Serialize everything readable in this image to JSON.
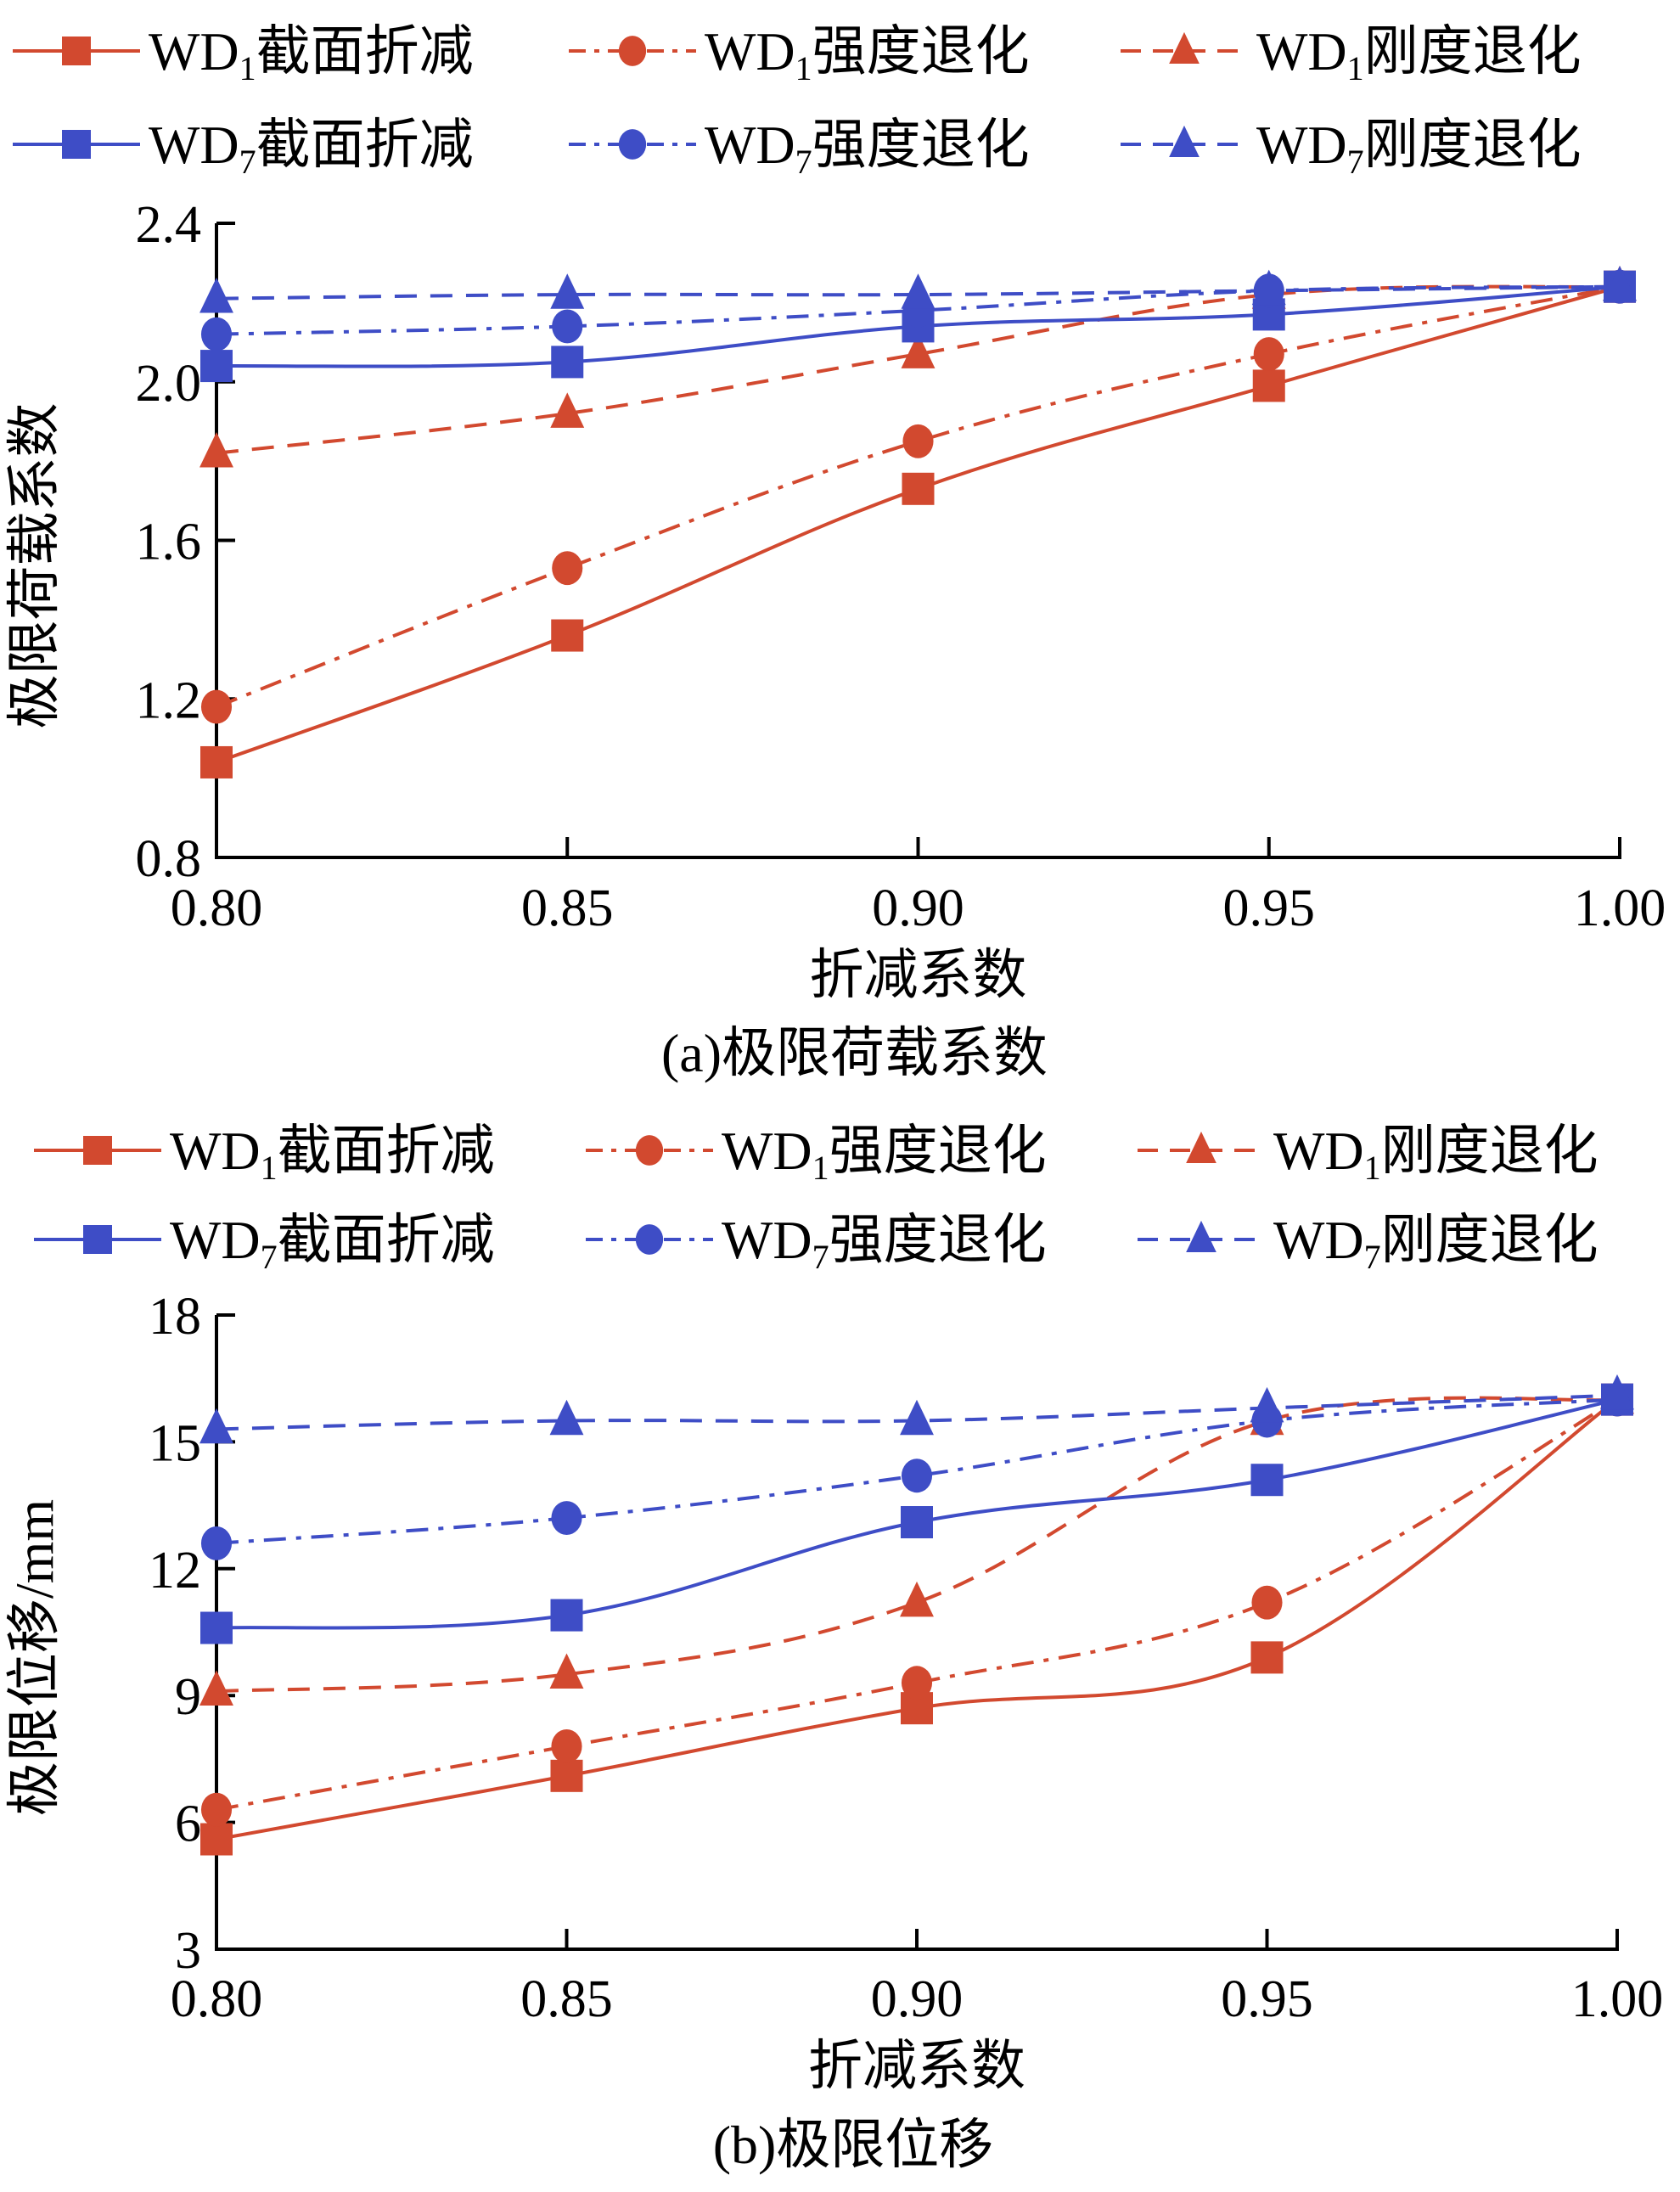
{
  "colors": {
    "red": "#D2492F",
    "blue": "#3E4DC6",
    "axis": "#000000"
  },
  "chart_data": [
    {
      "type": "line",
      "title": "(a)极限荷载系数",
      "xlabel": "折减系数",
      "ylabel": "极限荷载系数",
      "x": [
        0.8,
        0.85,
        0.9,
        0.95,
        1.0
      ],
      "xticks": [
        "0.80",
        "0.85",
        "0.90",
        "0.95",
        "1.00"
      ],
      "yticks": [
        "0.8",
        "1.2",
        "1.6",
        "2.0",
        "2.4"
      ],
      "ylim": [
        0.8,
        2.4
      ],
      "xlim": [
        0.8,
        1.0
      ],
      "grid": false,
      "legend_placement": "top",
      "series": [
        {
          "name": "WD1截面折减",
          "label_main": "WD",
          "label_sub": "1",
          "label_rest": "截面折减",
          "color": "red",
          "dash": "solid",
          "marker": "square",
          "values": [
            1.04,
            1.36,
            1.73,
            1.99,
            2.24
          ]
        },
        {
          "name": "WD1强度退化",
          "label_main": "WD",
          "label_sub": "1",
          "label_rest": "强度退化",
          "color": "red",
          "dash": "dashdot",
          "marker": "circle",
          "values": [
            1.18,
            1.53,
            1.85,
            2.07,
            2.24
          ]
        },
        {
          "name": "WD1刚度退化",
          "label_main": "WD",
          "label_sub": "1",
          "label_rest": "刚度退化",
          "color": "red",
          "dash": "dashed",
          "marker": "triangle",
          "values": [
            1.82,
            1.92,
            2.07,
            2.22,
            2.24
          ]
        },
        {
          "name": "WD7截面折减",
          "label_main": "WD",
          "label_sub": "7",
          "label_rest": "截面折减",
          "color": "blue",
          "dash": "solid",
          "marker": "square",
          "values": [
            2.04,
            2.05,
            2.14,
            2.17,
            2.24
          ]
        },
        {
          "name": "WD7强度退化",
          "label_main": "WD",
          "label_sub": "7",
          "label_rest": "强度退化",
          "color": "blue",
          "dash": "dashdot",
          "marker": "circle",
          "values": [
            2.12,
            2.14,
            2.18,
            2.23,
            2.24
          ]
        },
        {
          "name": "WD7刚度退化",
          "label_main": "WD",
          "label_sub": "7",
          "label_rest": "刚度退化",
          "color": "blue",
          "dash": "dashed",
          "marker": "triangle",
          "values": [
            2.21,
            2.22,
            2.22,
            2.23,
            2.24
          ]
        }
      ]
    },
    {
      "type": "line",
      "title": "(b)极限位移",
      "xlabel": "折减系数",
      "ylabel": "极限位移/mm",
      "x": [
        0.8,
        0.85,
        0.9,
        0.95,
        1.0
      ],
      "xticks": [
        "0.80",
        "0.85",
        "0.90",
        "0.95",
        "1.00"
      ],
      "yticks": [
        "3",
        "6",
        "9",
        "12",
        "15",
        "18"
      ],
      "ylim": [
        3,
        18
      ],
      "xlim": [
        0.8,
        1.0
      ],
      "grid": false,
      "legend_placement": "top",
      "series": [
        {
          "name": "WD1截面折减",
          "label_main": "WD",
          "label_sub": "1",
          "label_rest": "截面折减",
          "color": "red",
          "dash": "solid",
          "marker": "square",
          "values": [
            5.6,
            7.1,
            8.7,
            9.9,
            16.0
          ]
        },
        {
          "name": "WD1强度退化",
          "label_main": "WD",
          "label_sub": "1",
          "label_rest": "强度退化",
          "color": "red",
          "dash": "dashdot",
          "marker": "circle",
          "values": [
            6.3,
            7.8,
            9.3,
            11.2,
            16.0
          ]
        },
        {
          "name": "WD1刚度退化",
          "label_main": "WD",
          "label_sub": "1",
          "label_rest": "刚度退化",
          "color": "red",
          "dash": "dashed",
          "marker": "triangle",
          "values": [
            9.1,
            9.5,
            11.2,
            15.5,
            16.0
          ]
        },
        {
          "name": "WD7截面折减",
          "label_main": "WD",
          "label_sub": "7",
          "label_rest": "截面折减",
          "color": "blue",
          "dash": "solid",
          "marker": "square",
          "values": [
            10.6,
            10.9,
            13.1,
            14.1,
            16.0
          ]
        },
        {
          "name": "WD7强度退化",
          "label_main": "WD",
          "label_sub": "7",
          "label_rest": "强度退化",
          "color": "blue",
          "dash": "dashdot",
          "marker": "circle",
          "values": [
            12.6,
            13.2,
            14.2,
            15.5,
            16.0
          ]
        },
        {
          "name": "WD7刚度退化",
          "label_main": "WD",
          "label_sub": "7",
          "label_rest": "刚度退化",
          "color": "blue",
          "dash": "dashed",
          "marker": "triangle",
          "values": [
            15.3,
            15.5,
            15.5,
            15.8,
            16.1
          ]
        }
      ]
    }
  ]
}
